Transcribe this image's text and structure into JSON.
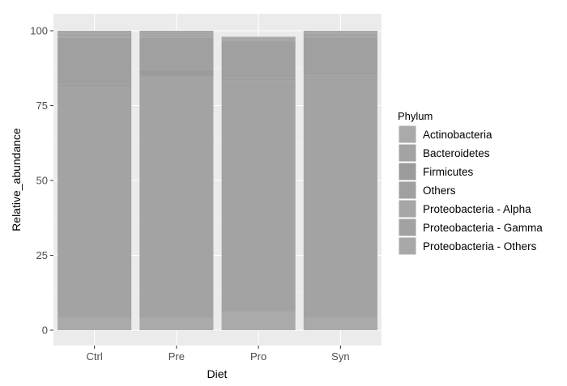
{
  "chart_data": {
    "type": "bar",
    "stacked": true,
    "xlabel": "Diet",
    "ylabel": "Relative_abundance",
    "ylim": [
      0,
      100
    ],
    "yticks": [
      0,
      25,
      50,
      75,
      100
    ],
    "categories": [
      "Ctrl",
      "Pre",
      "Pro",
      "Syn"
    ],
    "grid": true,
    "legend_position": "right",
    "legend_title": "Phylum",
    "series": [
      {
        "name": "Actinobacteria",
        "color": "#aaaaaa",
        "values": [
          4.2,
          4.2,
          6.0,
          4.2
        ]
      },
      {
        "name": "Bacteroidetes",
        "color": "#a3a3a3",
        "values": [
          77.3,
          80.8,
          77.5,
          81.3
        ]
      },
      {
        "name": "Firmicutes",
        "color": "#9b9b9b",
        "values": [
          0.6,
          2.0,
          0.5,
          0.6
        ]
      },
      {
        "name": "Others",
        "color": "#a0a0a0",
        "values": [
          15.5,
          10.8,
          12.5,
          11.7
        ]
      },
      {
        "name": "Proteobacteria - Alpha",
        "color": "#a6a6a6",
        "values": [
          0.9,
          0.9,
          0.6,
          0.7
        ]
      },
      {
        "name": "Proteobacteria - Gamma",
        "color": "#a2a2a2",
        "values": [
          0.6,
          0.6,
          0.5,
          0.6
        ]
      },
      {
        "name": "Proteobacteria - Others",
        "color": "#a8a8a8",
        "values": [
          0.9,
          0.7,
          0.4,
          0.9
        ]
      }
    ]
  }
}
